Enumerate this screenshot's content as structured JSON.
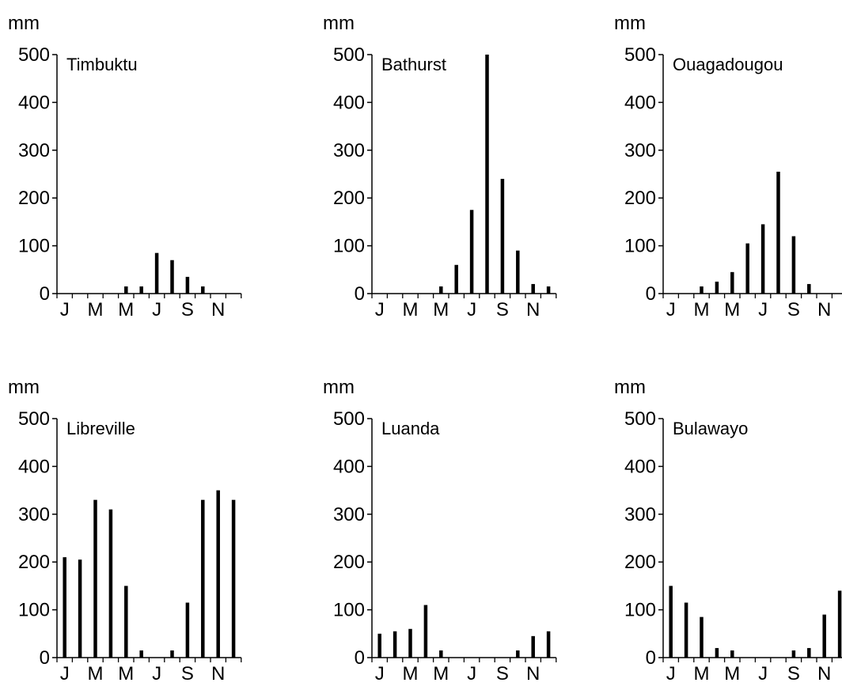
{
  "chart_data": [
    {
      "type": "bar",
      "title": "Timbuktu",
      "ylabel": "mm",
      "ylim": [
        0,
        500
      ],
      "yticks": [
        0,
        100,
        200,
        300,
        400,
        500
      ],
      "month_labels": [
        "J",
        "M",
        "M",
        "J",
        "S",
        "N"
      ],
      "categories": [
        "Jan",
        "Feb",
        "Mar",
        "Apr",
        "May",
        "Jun",
        "Jul",
        "Aug",
        "Sep",
        "Oct",
        "Nov",
        "Dec"
      ],
      "values": [
        0,
        0,
        0,
        0,
        15,
        15,
        85,
        70,
        35,
        15,
        0,
        0
      ],
      "grid": false
    },
    {
      "type": "bar",
      "title": "Bathurst",
      "ylabel": "mm",
      "ylim": [
        0,
        500
      ],
      "yticks": [
        0,
        100,
        200,
        300,
        400,
        500
      ],
      "month_labels": [
        "J",
        "M",
        "M",
        "J",
        "S",
        "N"
      ],
      "categories": [
        "Jan",
        "Feb",
        "Mar",
        "Apr",
        "May",
        "Jun",
        "Jul",
        "Aug",
        "Sep",
        "Oct",
        "Nov",
        "Dec"
      ],
      "values": [
        0,
        0,
        0,
        0,
        15,
        60,
        175,
        500,
        240,
        90,
        20,
        15
      ],
      "grid": false
    },
    {
      "type": "bar",
      "title": "Ouagadougou",
      "ylabel": "mm",
      "ylim": [
        0,
        500
      ],
      "yticks": [
        0,
        100,
        200,
        300,
        400,
        500
      ],
      "month_labels": [
        "J",
        "M",
        "M",
        "J",
        "S",
        "N"
      ],
      "categories": [
        "Jan",
        "Feb",
        "Mar",
        "Apr",
        "May",
        "Jun",
        "Jul",
        "Aug",
        "Sep",
        "Oct",
        "Nov",
        "Dec"
      ],
      "values": [
        0,
        0,
        15,
        25,
        45,
        105,
        145,
        255,
        120,
        20,
        0,
        0
      ],
      "grid": false
    },
    {
      "type": "bar",
      "title": "Libreville",
      "ylabel": "mm",
      "ylim": [
        0,
        500
      ],
      "yticks": [
        0,
        100,
        200,
        300,
        400,
        500
      ],
      "month_labels": [
        "J",
        "M",
        "M",
        "J",
        "S",
        "N"
      ],
      "categories": [
        "Jan",
        "Feb",
        "Mar",
        "Apr",
        "May",
        "Jun",
        "Jul",
        "Aug",
        "Sep",
        "Oct",
        "Nov",
        "Dec"
      ],
      "values": [
        210,
        205,
        330,
        310,
        150,
        15,
        0,
        15,
        115,
        330,
        350,
        330
      ],
      "grid": false
    },
    {
      "type": "bar",
      "title": "Luanda",
      "ylabel": "mm",
      "ylim": [
        0,
        500
      ],
      "yticks": [
        0,
        100,
        200,
        300,
        400,
        500
      ],
      "month_labels": [
        "J",
        "M",
        "M",
        "J",
        "S",
        "N"
      ],
      "categories": [
        "Jan",
        "Feb",
        "Mar",
        "Apr",
        "May",
        "Jun",
        "Jul",
        "Aug",
        "Sep",
        "Oct",
        "Nov",
        "Dec"
      ],
      "values": [
        50,
        55,
        60,
        110,
        15,
        0,
        0,
        0,
        0,
        15,
        45,
        55
      ],
      "grid": false
    },
    {
      "type": "bar",
      "title": "Bulawayo",
      "ylabel": "mm",
      "ylim": [
        0,
        500
      ],
      "yticks": [
        0,
        100,
        200,
        300,
        400,
        500
      ],
      "month_labels": [
        "J",
        "M",
        "M",
        "J",
        "S",
        "N"
      ],
      "categories": [
        "Jan",
        "Feb",
        "Mar",
        "Apr",
        "May",
        "Jun",
        "Jul",
        "Aug",
        "Sep",
        "Oct",
        "Nov",
        "Dec"
      ],
      "values": [
        150,
        115,
        85,
        20,
        15,
        0,
        0,
        0,
        15,
        20,
        90,
        140
      ],
      "grid": false
    }
  ]
}
